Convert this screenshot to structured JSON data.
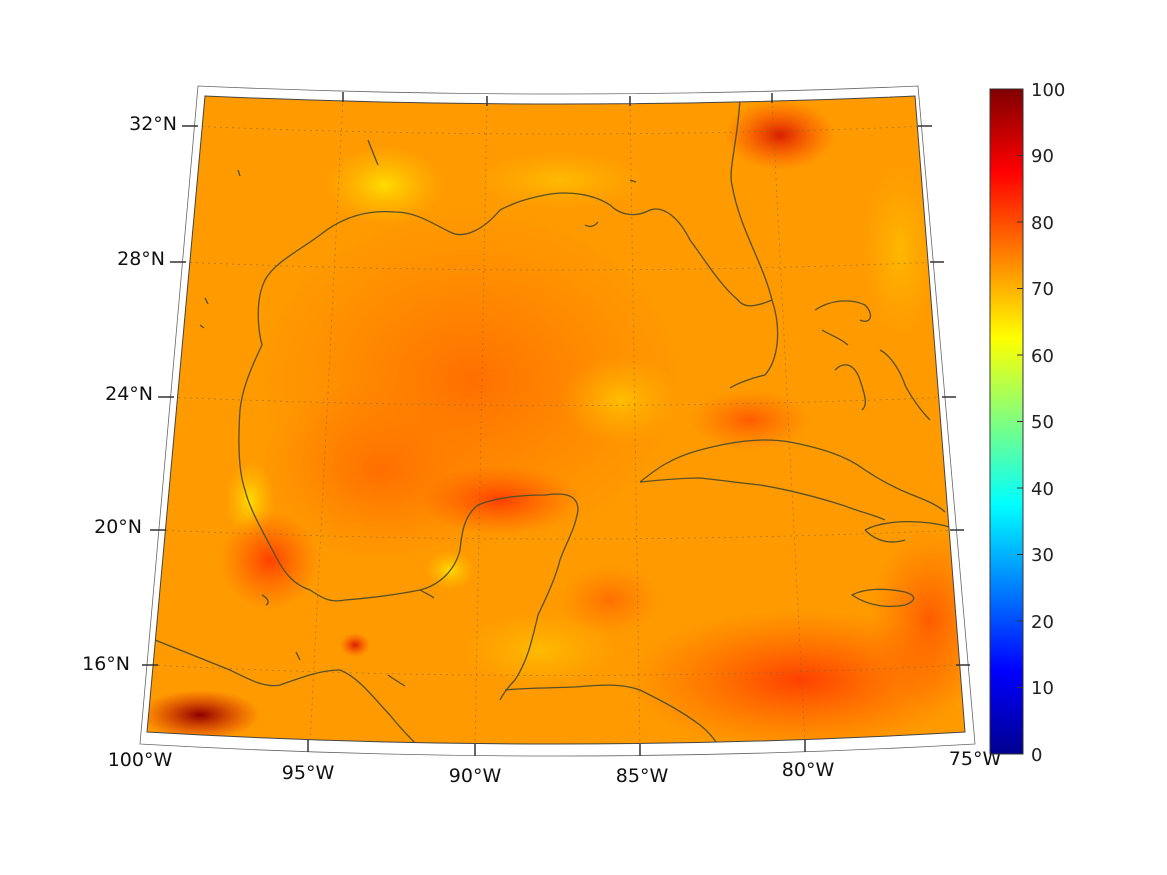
{
  "map": {
    "lat_labels": [
      "32°N",
      "28°N",
      "24°N",
      "20°N",
      "16°N"
    ],
    "lon_labels": [
      "100°W",
      "95°W",
      "90°W",
      "85°W",
      "80°W",
      "75°W"
    ],
    "projection": "conic",
    "extent": {
      "lon_min": -100,
      "lon_max": -75,
      "lat_min": 14,
      "lat_max": 32.5
    },
    "field_colors": {
      "orange": "#ff9900",
      "red_orange": "#ff6a00",
      "yellow": "#ffcc00",
      "red": "#e02000",
      "dark_red": "#a00000"
    },
    "coastline_color": "#55502a",
    "grid": "dotted"
  },
  "colorbar": {
    "ticks": [
      "100",
      "90",
      "80",
      "70",
      "60",
      "50",
      "40",
      "30",
      "20",
      "10",
      "0"
    ],
    "range": [
      0,
      100
    ],
    "colormap": "jet"
  }
}
